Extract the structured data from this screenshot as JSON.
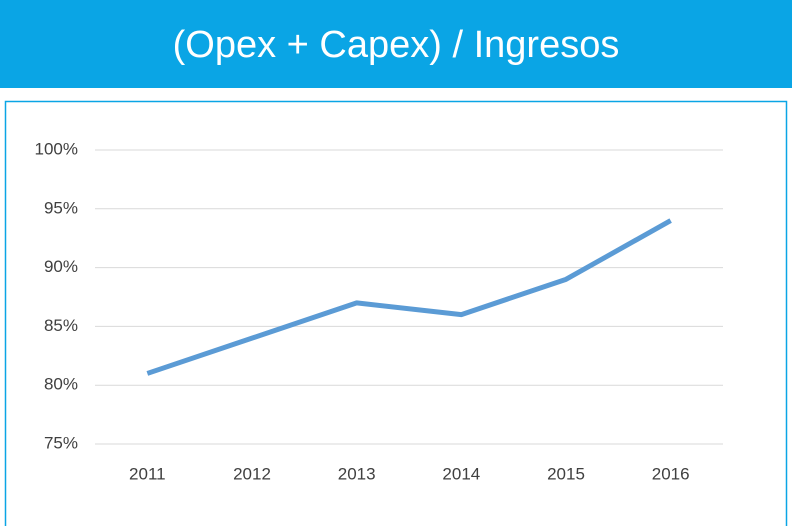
{
  "chart_data": {
    "type": "line",
    "title": "(Opex + Capex) / Ingresos",
    "categories": [
      "2011",
      "2012",
      "2013",
      "2014",
      "2015",
      "2016"
    ],
    "series": [
      {
        "name": null,
        "color": "#5b9bd5",
        "values": [
          81,
          84,
          87,
          86,
          89,
          94
        ]
      }
    ],
    "ylim": [
      75,
      100
    ],
    "yticks": [
      {
        "value": 75,
        "label": "75%"
      },
      {
        "value": 80,
        "label": "80%"
      },
      {
        "value": 85,
        "label": "85%"
      },
      {
        "value": 90,
        "label": "90%"
      },
      {
        "value": 95,
        "label": "95%"
      },
      {
        "value": 100,
        "label": "100%"
      }
    ],
    "grid": true
  }
}
